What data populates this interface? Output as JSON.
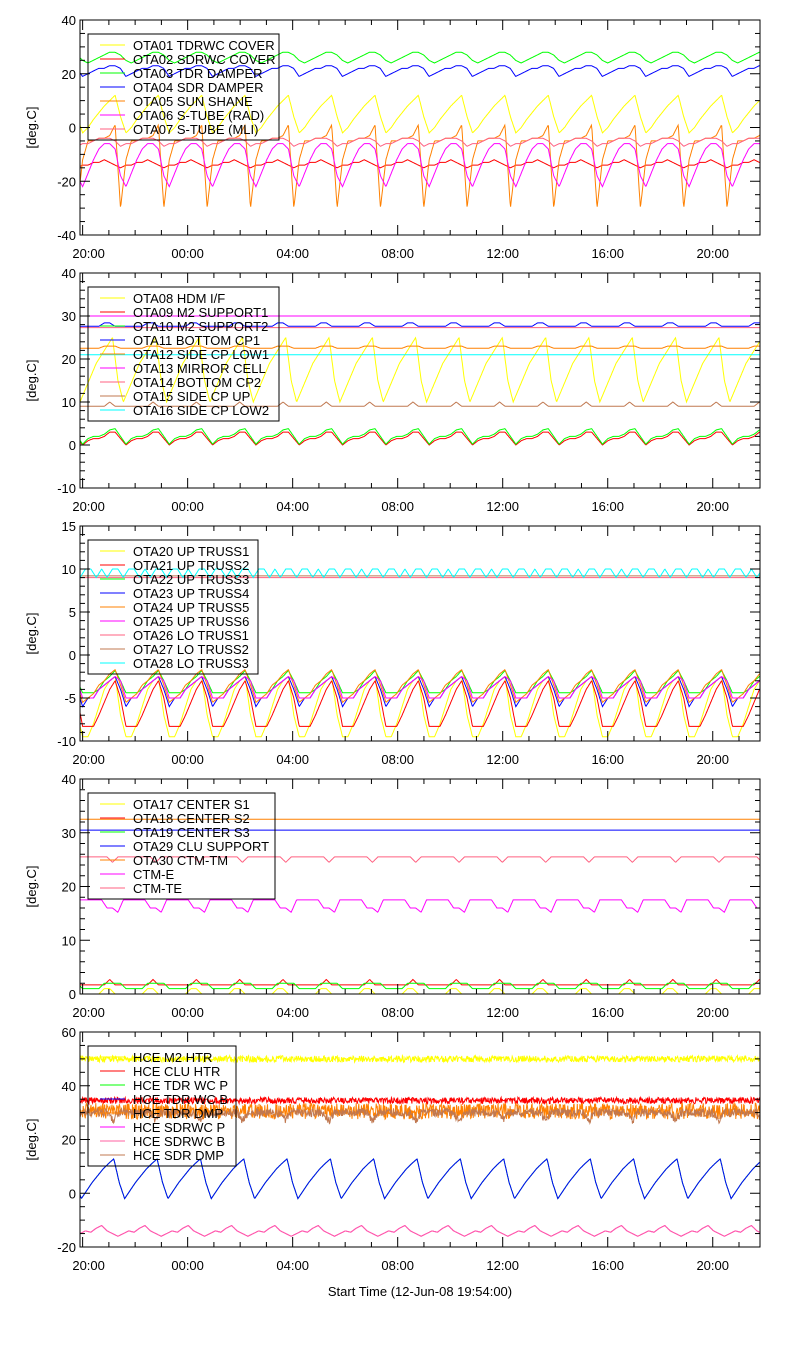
{
  "chart_data": [
    {
      "type": "line",
      "ylabel": "[deg.C]",
      "ylim": [
        -40,
        40
      ],
      "yticks": [
        -40,
        -20,
        0,
        20,
        40
      ],
      "yminor": 5,
      "series": [
        {
          "name": "OTA01 TDRWC COVER",
          "color": "#ffff00",
          "profile": [
            -2,
            0,
            3,
            5.5,
            8,
            10,
            12,
            4
          ],
          "phase_h": 0.1
        },
        {
          "name": "OTA02 SDRWC COVER",
          "color": "#ff0000",
          "profile": [
            -14,
            -14,
            -13,
            -13,
            -12,
            -13,
            -14,
            -15
          ],
          "phase_h": 0.1
        },
        {
          "name": "OTA03 TDR DAMPER",
          "color": "#00ff00",
          "profile": [
            24,
            25,
            26,
            27,
            28,
            28,
            27,
            25
          ],
          "phase_h": 0.3
        },
        {
          "name": "OTA04 SDR DAMPER",
          "color": "#0000ff",
          "profile": [
            20,
            21,
            22,
            22,
            23,
            23,
            22,
            19
          ],
          "phase_h": 0.3
        },
        {
          "name": "OTA05 SUN SHANE",
          "color": "#ff8000",
          "profile": [
            -12,
            -5,
            -5,
            -4,
            -4,
            -3,
            1,
            -30
          ],
          "phase_h": 0.1
        },
        {
          "name": "OTA06 S-TUBE (RAD)",
          "color": "#ff00ff",
          "profile": [
            -22,
            -17,
            -12,
            -8,
            -6,
            -6,
            -8,
            -18
          ],
          "phase_h": 0.1
        },
        {
          "name": "OTA07 S-TUBE (MLI)",
          "color": "#ff6080",
          "profile": [
            -6,
            -6,
            -5,
            -4,
            -4,
            -4,
            -5,
            -7
          ],
          "phase_h": 0.1
        }
      ]
    },
    {
      "type": "line",
      "ylabel": "[deg.C]",
      "ylim": [
        -10,
        40
      ],
      "yticks": [
        -10,
        0,
        10,
        20,
        30,
        40
      ],
      "yminor": 2,
      "series": [
        {
          "name": "OTA08 HDM I/F",
          "color": "#ffff00",
          "profile": [
            10,
            13,
            16,
            19,
            21,
            23,
            25,
            15
          ],
          "phase_h": 0.0
        },
        {
          "name": "OTA09 M2 SUPPORT1",
          "color": "#ff0000",
          "profile": [
            0,
            1,
            1.5,
            1.5,
            2,
            3,
            3,
            1.5
          ],
          "phase_h": 0.1
        },
        {
          "name": "OTA10 M2 SUPPORT2",
          "color": "#00ff00",
          "profile": [
            0.2,
            1.5,
            2,
            2,
            2.5,
            3.5,
            3.8,
            2
          ],
          "phase_h": 0.1
        },
        {
          "name": "OTA11 BOTTOM CP1",
          "color": "#0000ff",
          "profile": [
            27.6,
            27.6,
            27.6,
            27.6,
            28.4,
            28.4,
            27.6,
            27.6
          ],
          "phase_h": 0.1
        },
        {
          "name": "OTA12 SIDE CP LOW1",
          "color": "#ff8000",
          "profile": [
            22.5,
            22.5,
            22.5,
            22.5,
            23,
            23,
            23,
            22.5
          ],
          "phase_h": 0.1
        },
        {
          "name": "OTA13 MIRROR CELL",
          "color": "#ff00ff",
          "profile": [
            30,
            30,
            30,
            30,
            30,
            30,
            30,
            30
          ],
          "phase_h": 0.0
        },
        {
          "name": "OTA14 BOTTOM CP2",
          "color": "#ff6080",
          "profile": [
            27.3,
            27.3,
            27.3,
            27.3,
            27.3,
            27.3,
            27.3,
            27.3
          ],
          "phase_h": 0.0
        },
        {
          "name": "OTA15 SIDE CP UP",
          "color": "#c07850",
          "profile": [
            9,
            9,
            9,
            9,
            9,
            10,
            9,
            9
          ],
          "phase_h": 0.1
        },
        {
          "name": "OTA16 SIDE CP LOW2",
          "color": "#00ffff",
          "profile": [
            21,
            21,
            21,
            21,
            21,
            21,
            21,
            21
          ],
          "phase_h": 0.0
        }
      ]
    },
    {
      "type": "line",
      "ylabel": "[deg.C]",
      "ylim": [
        -10,
        15
      ],
      "yticks": [
        -10,
        -5,
        0,
        5,
        10,
        15
      ],
      "yminor": 1,
      "series": [
        {
          "name": "OTA20 UP TRUSS1",
          "color": "#ffff00",
          "profile": [
            -9.5,
            -9.5,
            -8,
            -6,
            -4,
            -3,
            -2.5,
            -7
          ],
          "phase_h": 0.1
        },
        {
          "name": "OTA21 UP TRUSS2",
          "color": "#ff0000",
          "profile": [
            -8.3,
            -8.3,
            -8.3,
            -7,
            -5.5,
            -4,
            -3,
            -5
          ],
          "phase_h": 0.1
        },
        {
          "name": "OTA22 UP TRUSS3",
          "color": "#00ff00",
          "profile": [
            -4.4,
            -4.4,
            -4.4,
            -4,
            -3,
            -2.5,
            -1.8,
            -3
          ],
          "phase_h": 0.1
        },
        {
          "name": "OTA23 UP TRUSS4",
          "color": "#0000ff",
          "profile": [
            -6,
            -5,
            -5,
            -4,
            -3.5,
            -3,
            -2.5,
            -4
          ],
          "phase_h": 0.1
        },
        {
          "name": "OTA24 UP TRUSS5",
          "color": "#ff8000",
          "profile": [
            -5.5,
            -5,
            -4.5,
            -3.5,
            -3,
            -2.2,
            -1.7,
            -3.5
          ],
          "phase_h": 0.1
        },
        {
          "name": "OTA25 UP TRUSS6",
          "color": "#ff00ff",
          "profile": [
            -5,
            -5,
            -5,
            -4,
            -3.5,
            -3,
            -2.5,
            -3
          ],
          "phase_h": 0.1
        },
        {
          "name": "OTA26 LO TRUSS1",
          "color": "#ff6080",
          "profile": [
            9,
            9,
            9,
            9,
            9,
            9,
            9,
            9
          ],
          "phase_h": 0.0
        },
        {
          "name": "OTA27 LO TRUSS2",
          "color": "#c07850",
          "profile": [
            9.2,
            9.2,
            9.2,
            9.2,
            9.2,
            9.2,
            9.2,
            9.2
          ],
          "phase_h": 0.0
        },
        {
          "name": "OTA28 LO TRUSS3",
          "color": "#00ffff",
          "profile": [
            9,
            10,
            10,
            9,
            10,
            9,
            10,
            10
          ],
          "phase_h": 0.0
        }
      ]
    },
    {
      "type": "line",
      "ylabel": "[deg.C]",
      "ylim": [
        0,
        40
      ],
      "yticks": [
        0,
        10,
        20,
        30,
        40
      ],
      "yminor": 2,
      "series": [
        {
          "name": "OTA17 CENTER S1",
          "color": "#ffff00",
          "profile": [
            0,
            0,
            0,
            0,
            1,
            1,
            0,
            0
          ],
          "phase_h": 0.1
        },
        {
          "name": "OTA18 CENTER S2",
          "color": "#ff0000",
          "profile": [
            1.7,
            1.7,
            1.7,
            1.7,
            1.7,
            2.7,
            1.7,
            1.7
          ],
          "phase_h": 0.1
        },
        {
          "name": "OTA19 CENTER S3",
          "color": "#00ff00",
          "profile": [
            1,
            1,
            1,
            1,
            2,
            2,
            2,
            2
          ],
          "phase_h": 0.1
        },
        {
          "name": "OTA29 CLU SUPPORT",
          "color": "#0000ff",
          "profile": [
            30.5,
            30.5,
            30.5,
            30.5,
            30.5,
            30.5,
            30.5,
            30.5
          ],
          "phase_h": 0.0
        },
        {
          "name": "OTA30 CTM-TM",
          "color": "#ff8000",
          "profile": [
            32.5,
            32.5,
            32.5,
            32.5,
            32.5,
            32.5,
            32.5,
            32.5
          ],
          "phase_h": 0.0
        },
        {
          "name": "CTM-E",
          "color": "#ff00ff",
          "profile": [
            17.5,
            17.5,
            17.5,
            17.5,
            17.5,
            16,
            16,
            15.2
          ],
          "phase_h": 0.0
        },
        {
          "name": "CTM-TE",
          "color": "#ff6080",
          "profile": [
            25.5,
            25.5,
            25.5,
            25.5,
            25.5,
            25.5,
            24.5,
            25.5
          ],
          "phase_h": 0.0
        }
      ]
    },
    {
      "type": "line",
      "ylabel": "[deg.C]",
      "xlabel": "Start Time (12-Jun-08 19:54:00)",
      "ylim": [
        -20,
        60
      ],
      "yticks": [
        -20,
        0,
        20,
        40,
        60
      ],
      "yminor": 5,
      "series": [
        {
          "name": "HCE M2 HTR",
          "color": "#ffff00",
          "profile": [
            50,
            50,
            50,
            50,
            50,
            50,
            50,
            50
          ],
          "phase_h": 0.0,
          "noise": 1.2
        },
        {
          "name": "HCE CLU HTR",
          "color": "#ff0000",
          "profile": [
            34.5,
            34.5,
            34.5,
            34.5,
            34.5,
            34.5,
            34.5,
            34.5
          ],
          "phase_h": 0.0,
          "noise": 1.2
        },
        {
          "name": "HCE TDR WC P",
          "color": "#00ff00",
          "profile": [
            -2,
            1,
            4,
            6.5,
            9,
            11,
            12.8,
            4
          ],
          "phase_h": 0.05
        },
        {
          "name": "HCE TDR WC B",
          "color": "#0000ff",
          "profile": [
            -2,
            1,
            4,
            6.5,
            9,
            11,
            12.8,
            4
          ],
          "phase_h": 0.05
        },
        {
          "name": "HCE TDR DMP",
          "color": "#ff8000",
          "profile": [
            30.5,
            30.5,
            30.5,
            30.5,
            30.5,
            30.5,
            30.5,
            30.5
          ],
          "phase_h": 0.0,
          "noise": 3
        },
        {
          "name": "HCE SDRWC P",
          "color": "#ff00ff",
          "profile": [
            -15,
            -14,
            -14.5,
            -13,
            -12,
            -14,
            -15,
            -16
          ],
          "phase_h": 0.0
        },
        {
          "name": "HCE SDRWC B",
          "color": "#ff60a0",
          "profile": [
            -15,
            -14,
            -14.5,
            -13,
            -12,
            -14,
            -15,
            -16
          ],
          "phase_h": 0.0
        },
        {
          "name": "HCE SDR DMP",
          "color": "#c07850",
          "profile": [
            30,
            30,
            30,
            30,
            30,
            30,
            27,
            30
          ],
          "phase_h": 0.0,
          "noise": 1.5
        }
      ]
    }
  ],
  "x_axis": {
    "unit": "hours since start",
    "xlim": [
      0,
      25.9
    ],
    "orbit_period_h": 1.65,
    "ticks": [
      {
        "t": 0.1,
        "label": "20:00"
      },
      {
        "t": 4.1,
        "label": "00:00"
      },
      {
        "t": 8.1,
        "label": "04:00"
      },
      {
        "t": 12.1,
        "label": "08:00"
      },
      {
        "t": 16.1,
        "label": "12:00"
      },
      {
        "t": 20.1,
        "label": "16:00"
      },
      {
        "t": 24.1,
        "label": "20:00"
      }
    ],
    "minor_step_h": 1
  }
}
